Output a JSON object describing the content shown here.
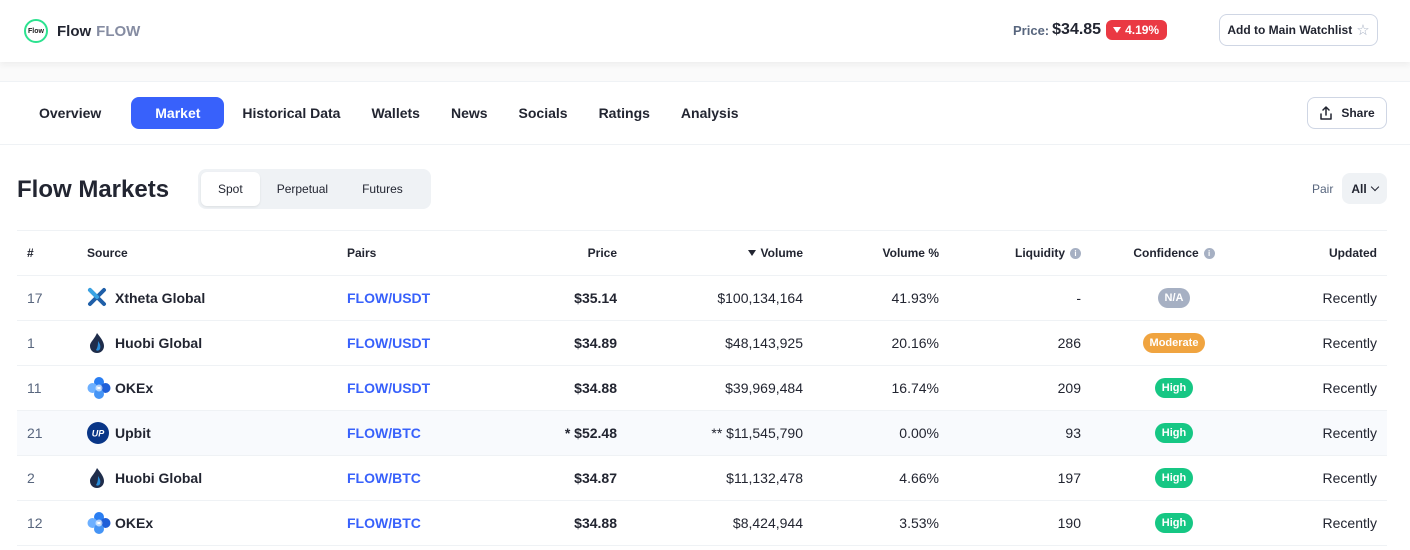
{
  "header": {
    "logo_text": "Flow",
    "coin_name": "Flow",
    "coin_symbol": "FLOW",
    "price_label": "Price:",
    "price_value": "$34.85",
    "change": "4.19%",
    "watchlist_label": "Add to Main Watchlist",
    "star_icon": "star-icon"
  },
  "nav": {
    "tabs": [
      {
        "label": "Overview"
      },
      {
        "label": "Market",
        "active": true
      },
      {
        "label": "Historical Data"
      },
      {
        "label": "Wallets"
      },
      {
        "label": "News"
      },
      {
        "label": "Socials"
      },
      {
        "label": "Ratings"
      },
      {
        "label": "Analysis"
      }
    ],
    "share_label": "Share"
  },
  "markets": {
    "title": "Flow Markets",
    "segments": [
      "Spot",
      "Perpetual",
      "Futures"
    ],
    "active_segment": "Spot",
    "pair_label": "Pair",
    "pair_value": "All",
    "columns": {
      "rank": "#",
      "source": "Source",
      "pairs": "Pairs",
      "price": "Price",
      "volume": "Volume",
      "volume_pct": "Volume %",
      "liquidity": "Liquidity",
      "confidence": "Confidence",
      "updated": "Updated"
    },
    "rows": [
      {
        "rank": "17",
        "source": "Xtheta Global",
        "icon": "xtheta-logo-icon",
        "pair": "FLOW/USDT",
        "price": "$35.14",
        "volume": "$100,134,164",
        "volume_pct": "41.93%",
        "liquidity": "-",
        "confidence": "N/A",
        "updated": "Recently"
      },
      {
        "rank": "1",
        "source": "Huobi Global",
        "icon": "huobi-logo-icon",
        "pair": "FLOW/USDT",
        "price": "$34.89",
        "volume": "$48,143,925",
        "volume_pct": "20.16%",
        "liquidity": "286",
        "confidence": "Moderate",
        "updated": "Recently"
      },
      {
        "rank": "11",
        "source": "OKEx",
        "icon": "okex-logo-icon",
        "pair": "FLOW/USDT",
        "price": "$34.88",
        "volume": "$39,969,484",
        "volume_pct": "16.74%",
        "liquidity": "209",
        "confidence": "High",
        "updated": "Recently"
      },
      {
        "rank": "21",
        "source": "Upbit",
        "icon": "upbit-logo-icon",
        "pair": "FLOW/BTC",
        "price": "* $52.48",
        "volume": "** $11,545,790",
        "volume_pct": "0.00%",
        "liquidity": "93",
        "confidence": "High",
        "updated": "Recently"
      },
      {
        "rank": "2",
        "source": "Huobi Global",
        "icon": "huobi-logo-icon",
        "pair": "FLOW/BTC",
        "price": "$34.87",
        "volume": "$11,132,478",
        "volume_pct": "4.66%",
        "liquidity": "197",
        "confidence": "High",
        "updated": "Recently"
      },
      {
        "rank": "12",
        "source": "OKEx",
        "icon": "okex-logo-icon",
        "pair": "FLOW/BTC",
        "price": "$34.88",
        "volume": "$8,424,944",
        "volume_pct": "3.53%",
        "liquidity": "190",
        "confidence": "High",
        "updated": "Recently"
      }
    ]
  },
  "colors": {
    "accent": "#3861fb",
    "negative": "#ea3943",
    "high": "#16c784",
    "moderate": "#f0a440",
    "na": "#a6b0c3"
  }
}
